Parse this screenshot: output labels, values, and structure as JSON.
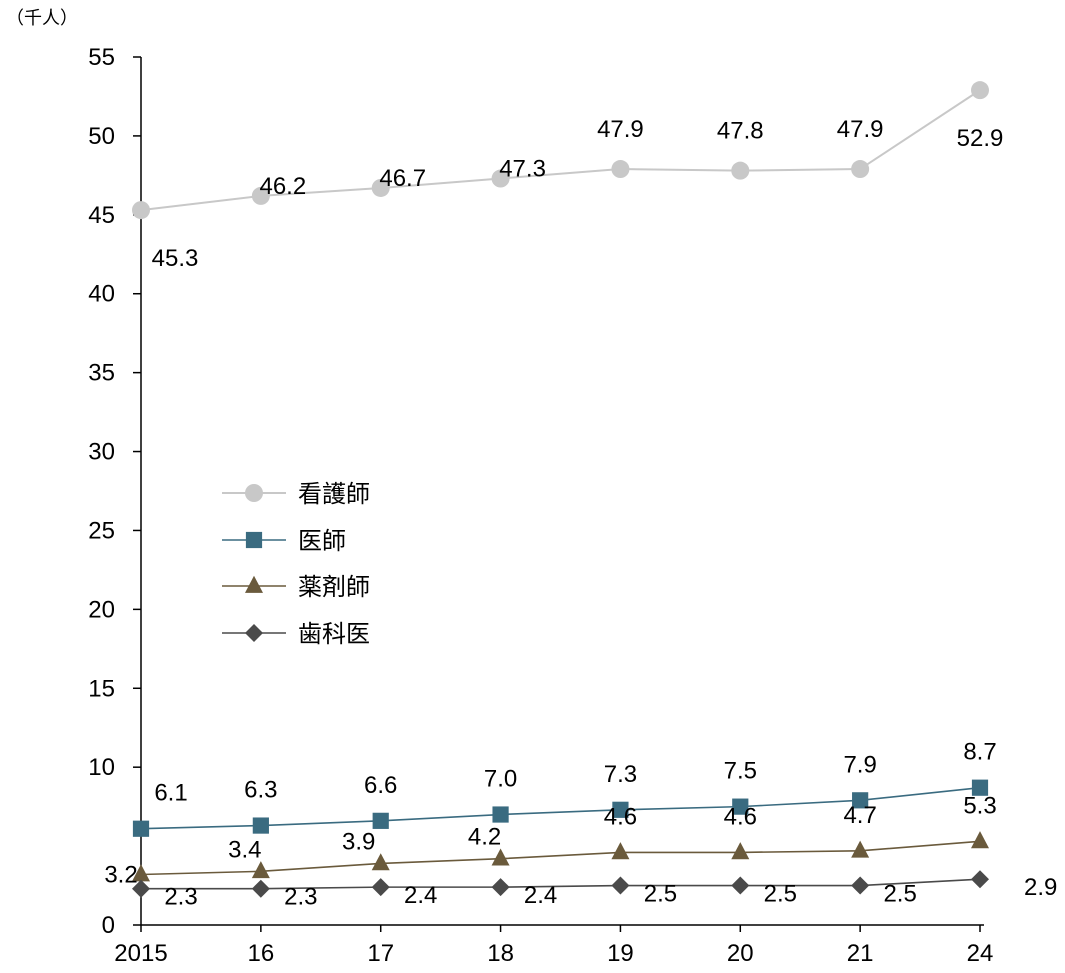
{
  "chart_data": {
    "type": "line",
    "unit_label": "（千人）",
    "categories": [
      "2015",
      "16",
      "17",
      "18",
      "19",
      "20",
      "21",
      "24"
    ],
    "ylim": [
      0,
      55
    ],
    "yticks": [
      0,
      10,
      15,
      20,
      25,
      30,
      35,
      40,
      45,
      50,
      55
    ],
    "grid": false,
    "legend_position": "center-left",
    "series": [
      {
        "name": "看護師",
        "marker": "circle",
        "color": "#c8c8c8",
        "values": [
          45.3,
          46.2,
          46.7,
          47.3,
          47.9,
          47.8,
          47.9,
          52.9
        ],
        "labels": [
          "45.3",
          "46.2",
          "46.7",
          "47.3",
          "47.9",
          "47.8",
          "47.9",
          "52.9"
        ]
      },
      {
        "name": "医師",
        "marker": "square",
        "color": "#3a6b80",
        "values": [
          6.1,
          6.3,
          6.6,
          7.0,
          7.3,
          7.5,
          7.9,
          8.7
        ],
        "labels": [
          "6.1",
          "6.3",
          "6.6",
          "7.0",
          "7.3",
          "7.5",
          "7.9",
          "8.7"
        ]
      },
      {
        "name": "薬剤師",
        "marker": "triangle",
        "color": "#6a5a3c",
        "values": [
          3.2,
          3.4,
          3.9,
          4.2,
          4.6,
          4.6,
          4.7,
          5.3
        ],
        "labels": [
          "3.2",
          "3.4",
          "3.9",
          "4.2",
          "4.6",
          "4.6",
          "4.7",
          "5.3"
        ]
      },
      {
        "name": "歯科医",
        "marker": "diamond",
        "color": "#4a4a4a",
        "values": [
          2.3,
          2.3,
          2.4,
          2.4,
          2.5,
          2.5,
          2.5,
          2.9
        ],
        "labels": [
          "2.3",
          "2.3",
          "2.4",
          "2.4",
          "2.5",
          "2.5",
          "2.5",
          "2.9"
        ]
      }
    ]
  }
}
